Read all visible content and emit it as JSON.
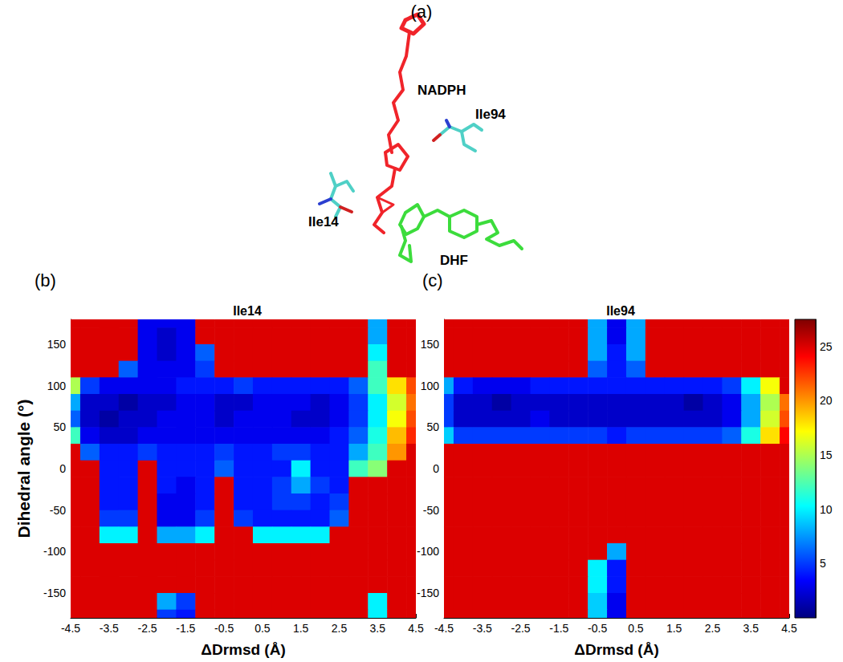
{
  "structure": {
    "label": "(a)",
    "labels": [
      "NADPH",
      "Ile94",
      "Ile14",
      "DHF"
    ]
  },
  "chart_data": [
    {
      "type": "heatmap",
      "panel": "(b)",
      "title": "Ile14",
      "x_label": "ΔDrmsd (Å)",
      "y_label": "Dihedral angle (°)",
      "xlim": [
        -4.5,
        4.5
      ],
      "ylim": [
        -180,
        180
      ],
      "xticks": [
        -4.5,
        -3.5,
        -2.5,
        -1.5,
        -0.5,
        0.5,
        1.5,
        2.5,
        3.5,
        4.5
      ],
      "yticks": [
        -150,
        -100,
        -50,
        0,
        50,
        100,
        150
      ],
      "x": [
        -4.5,
        -4,
        -3.5,
        -3,
        -2.5,
        -2,
        -1.5,
        -1,
        -0.5,
        0,
        0.5,
        1,
        1.5,
        2,
        2.5,
        3,
        3.5,
        4,
        4.5
      ],
      "y": [
        180,
        160,
        140,
        120,
        100,
        80,
        60,
        40,
        20,
        0,
        -20,
        -40,
        -60,
        -80,
        -100,
        -120,
        -140,
        -160,
        -180
      ],
      "z": [
        [
          25,
          25,
          25,
          25,
          3,
          3,
          3,
          25,
          25,
          25,
          25,
          25,
          25,
          25,
          25,
          25,
          8,
          25,
          25
        ],
        [
          25,
          25,
          25,
          25,
          3,
          2,
          3,
          25,
          25,
          25,
          25,
          25,
          25,
          25,
          25,
          25,
          8,
          25,
          25
        ],
        [
          25,
          25,
          25,
          25,
          3,
          2,
          3,
          6,
          25,
          25,
          25,
          25,
          25,
          25,
          25,
          25,
          10,
          25,
          25
        ],
        [
          25,
          25,
          25,
          6,
          3,
          3,
          3,
          5,
          25,
          25,
          25,
          25,
          25,
          25,
          25,
          25,
          12,
          25,
          25
        ],
        [
          15,
          5,
          3,
          3,
          3,
          3,
          4,
          4,
          4,
          5,
          4,
          4,
          4,
          4,
          4,
          6,
          12,
          18,
          22
        ],
        [
          8,
          2,
          2,
          1,
          2,
          2,
          3,
          3,
          2,
          2,
          3,
          3,
          3,
          2,
          3,
          5,
          10,
          16,
          21
        ],
        [
          6,
          2,
          1,
          2,
          2,
          3,
          3,
          3,
          2,
          3,
          3,
          3,
          2,
          2,
          3,
          5,
          10,
          17,
          22
        ],
        [
          12,
          3,
          2,
          2,
          3,
          3,
          3,
          3,
          3,
          3,
          3,
          3,
          3,
          3,
          4,
          6,
          11,
          19,
          23
        ],
        [
          25,
          6,
          4,
          4,
          5,
          4,
          4,
          4,
          5,
          4,
          4,
          5,
          5,
          4,
          4,
          8,
          12,
          20,
          25
        ],
        [
          25,
          25,
          4,
          4,
          25,
          4,
          4,
          4,
          6,
          4,
          4,
          4,
          10,
          4,
          4,
          12,
          14,
          25,
          25
        ],
        [
          25,
          25,
          4,
          4,
          25,
          4,
          3,
          4,
          25,
          4,
          4,
          5,
          8,
          5,
          4,
          25,
          25,
          25,
          25
        ],
        [
          25,
          25,
          4,
          4,
          25,
          3,
          3,
          4,
          25,
          4,
          4,
          5,
          5,
          4,
          5,
          25,
          25,
          25,
          25
        ],
        [
          25,
          25,
          5,
          5,
          25,
          3,
          3,
          5,
          25,
          5,
          4,
          4,
          4,
          4,
          6,
          25,
          25,
          25,
          25
        ],
        [
          25,
          25,
          10,
          10,
          25,
          8,
          8,
          10,
          25,
          25,
          10,
          10,
          10,
          10,
          25,
          25,
          25,
          25,
          25
        ],
        [
          25,
          25,
          25,
          25,
          25,
          25,
          25,
          25,
          25,
          25,
          25,
          25,
          25,
          25,
          25,
          25,
          25,
          25,
          25
        ],
        [
          25,
          25,
          25,
          25,
          25,
          25,
          25,
          25,
          25,
          25,
          25,
          25,
          25,
          25,
          25,
          25,
          25,
          25,
          25
        ],
        [
          25,
          25,
          25,
          25,
          25,
          25,
          25,
          25,
          25,
          25,
          25,
          25,
          25,
          25,
          25,
          25,
          25,
          25,
          25
        ],
        [
          25,
          25,
          25,
          25,
          25,
          8,
          5,
          25,
          25,
          25,
          25,
          25,
          25,
          25,
          25,
          25,
          10,
          25,
          25
        ],
        [
          25,
          25,
          25,
          25,
          25,
          5,
          4,
          25,
          25,
          25,
          25,
          25,
          25,
          25,
          25,
          25,
          10,
          25,
          25
        ]
      ]
    },
    {
      "type": "heatmap",
      "panel": "(c)",
      "title": "Ile94",
      "x_label": "ΔDrmsd (Å)",
      "xlim": [
        -4.5,
        4.5
      ],
      "ylim": [
        -180,
        180
      ],
      "xticks": [
        -4.5,
        -3.5,
        -2.5,
        -1.5,
        -0.5,
        0.5,
        1.5,
        2.5,
        3.5,
        4.5
      ],
      "yticks": [
        -150,
        -100,
        -50,
        0,
        50,
        100,
        150
      ],
      "x": [
        -4.5,
        -4,
        -3.5,
        -3,
        -2.5,
        -2,
        -1.5,
        -1,
        -0.5,
        0,
        0.5,
        1,
        1.5,
        2,
        2.5,
        3,
        3.5,
        4,
        4.5
      ],
      "y": [
        180,
        160,
        140,
        120,
        100,
        80,
        60,
        40,
        20,
        0,
        -20,
        -40,
        -60,
        -80,
        -100,
        -120,
        -140,
        -160,
        -180
      ],
      "z": [
        [
          25,
          25,
          25,
          25,
          25,
          25,
          25,
          25,
          8,
          3,
          8,
          25,
          25,
          25,
          25,
          25,
          25,
          25,
          25
        ],
        [
          25,
          25,
          25,
          25,
          25,
          25,
          25,
          25,
          8,
          3,
          8,
          25,
          25,
          25,
          25,
          25,
          25,
          25,
          25
        ],
        [
          25,
          25,
          25,
          25,
          25,
          25,
          25,
          25,
          8,
          4,
          8,
          25,
          25,
          25,
          25,
          25,
          25,
          25,
          25
        ],
        [
          25,
          25,
          25,
          25,
          25,
          25,
          25,
          25,
          6,
          4,
          6,
          25,
          25,
          25,
          25,
          25,
          25,
          25,
          25
        ],
        [
          8,
          4,
          3,
          3,
          3,
          4,
          4,
          4,
          4,
          4,
          4,
          4,
          4,
          4,
          4,
          5,
          10,
          17,
          25
        ],
        [
          5,
          2,
          2,
          1,
          2,
          2,
          2,
          2,
          2,
          2,
          2,
          2,
          2,
          1,
          2,
          3,
          8,
          15,
          21
        ],
        [
          5,
          2,
          2,
          2,
          2,
          3,
          2,
          2,
          2,
          2,
          2,
          2,
          2,
          2,
          2,
          3,
          8,
          16,
          22
        ],
        [
          9,
          5,
          5,
          5,
          5,
          5,
          5,
          5,
          5,
          4,
          5,
          5,
          5,
          5,
          5,
          6,
          11,
          18,
          24
        ],
        [
          25,
          25,
          25,
          25,
          25,
          25,
          25,
          25,
          25,
          25,
          25,
          25,
          25,
          25,
          25,
          25,
          25,
          25,
          25
        ],
        [
          25,
          25,
          25,
          25,
          25,
          25,
          25,
          25,
          25,
          25,
          25,
          25,
          25,
          25,
          25,
          25,
          25,
          25,
          25
        ],
        [
          25,
          25,
          25,
          25,
          25,
          25,
          25,
          25,
          25,
          25,
          25,
          25,
          25,
          25,
          25,
          25,
          25,
          25,
          25
        ],
        [
          25,
          25,
          25,
          25,
          25,
          25,
          25,
          25,
          25,
          25,
          25,
          25,
          25,
          25,
          25,
          25,
          25,
          25,
          25
        ],
        [
          25,
          25,
          25,
          25,
          25,
          25,
          25,
          25,
          25,
          25,
          25,
          25,
          25,
          25,
          25,
          25,
          25,
          25,
          25
        ],
        [
          25,
          25,
          25,
          25,
          25,
          25,
          25,
          25,
          25,
          25,
          25,
          25,
          25,
          25,
          25,
          25,
          25,
          25,
          25
        ],
        [
          25,
          25,
          25,
          25,
          25,
          25,
          25,
          25,
          25,
          8,
          25,
          25,
          25,
          25,
          25,
          25,
          25,
          25,
          25
        ],
        [
          25,
          25,
          25,
          25,
          25,
          25,
          25,
          25,
          10,
          4,
          25,
          25,
          25,
          25,
          25,
          25,
          25,
          25,
          25
        ],
        [
          25,
          25,
          25,
          25,
          25,
          25,
          25,
          25,
          10,
          4,
          25,
          25,
          25,
          25,
          25,
          25,
          25,
          25,
          25
        ],
        [
          25,
          25,
          25,
          25,
          25,
          25,
          25,
          25,
          9,
          3,
          25,
          25,
          25,
          25,
          25,
          25,
          25,
          25,
          25
        ],
        [
          25,
          25,
          25,
          25,
          25,
          25,
          25,
          25,
          9,
          3,
          25,
          25,
          25,
          25,
          25,
          25,
          25,
          25,
          25
        ]
      ],
      "colorbar": {
        "range": [
          0,
          27.5
        ],
        "ticks": [
          5,
          10,
          15,
          20,
          25
        ]
      }
    }
  ]
}
